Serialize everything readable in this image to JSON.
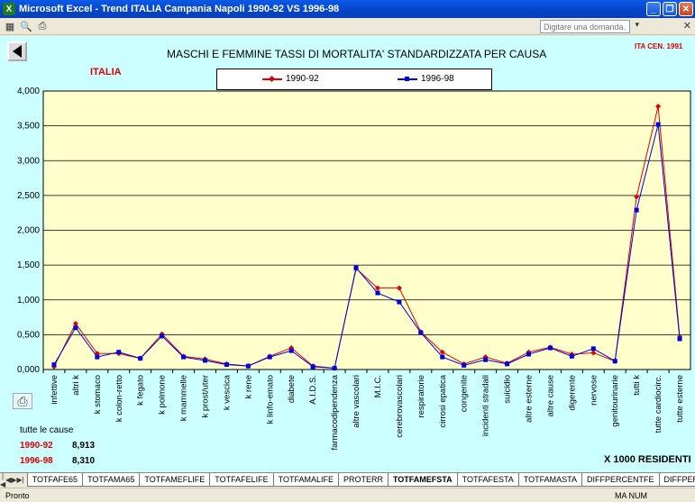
{
  "window": {
    "title": "Microsoft Excel - Trend ITALIA Campania Napoli 1990-92 VS 1996-98",
    "help_placeholder": "Digitare una domanda."
  },
  "chart_title": "MASCHI E FEMMINE TASSI DI MORTALITA' STANDARDIZZATA PER CAUSA",
  "region_label": "ITALIA",
  "census_label": "ITA CEN. 1991",
  "units_label": "X 1000 RESIDENTI",
  "summary": {
    "label": "tutte le cause",
    "rows": [
      {
        "year": "1990-92",
        "value": "8,913"
      },
      {
        "year": "1996-98",
        "value": "8,310"
      }
    ]
  },
  "colors": {
    "series1": "#e00000",
    "series2": "#0000dd",
    "plot_bg": "#ffffcc",
    "page_bg": "#ccffff"
  },
  "chart_data": {
    "type": "line",
    "categories": [
      "infettive",
      "altri k",
      "k stomaco",
      "k colon-retto",
      "k fegato",
      "k polmone",
      "k mammelle",
      "k prost/uter",
      "k vescica",
      "k rene",
      "k linfo-emato",
      "diabete",
      "A.I.D.S.",
      "farmacodipendenza",
      "altre vascolari",
      "M.I.C.",
      "cerebrovascolari",
      "respiratorie",
      "cirrosi epatica",
      "congenite",
      "incidenti stradali",
      "suicidio",
      "altre esterne",
      "altre cause",
      "digerente",
      "nervose",
      "genitourinarie",
      "tutti k",
      "tutte cardiocirc.",
      "tutte esterne"
    ],
    "series": [
      {
        "name": "1990-92",
        "values": [
          0.04,
          0.66,
          0.23,
          0.23,
          0.16,
          0.51,
          0.19,
          0.15,
          0.08,
          0.05,
          0.19,
          0.31,
          0.05,
          0.02,
          1.45,
          1.17,
          1.17,
          0.54,
          0.25,
          0.08,
          0.18,
          0.09,
          0.25,
          0.32,
          0.22,
          0.24,
          0.12,
          2.48,
          3.78,
          0.47
        ]
      },
      {
        "name": "1996-98",
        "values": [
          0.07,
          0.6,
          0.18,
          0.25,
          0.16,
          0.48,
          0.18,
          0.13,
          0.07,
          0.05,
          0.18,
          0.27,
          0.04,
          0.02,
          1.46,
          1.1,
          0.97,
          0.53,
          0.18,
          0.06,
          0.14,
          0.08,
          0.22,
          0.31,
          0.19,
          0.3,
          0.12,
          2.29,
          3.52,
          0.44
        ]
      }
    ],
    "y_ticks": [
      "0,000",
      "0,500",
      "1,000",
      "1,500",
      "2,000",
      "2,500",
      "3,000",
      "3,500",
      "4,000"
    ],
    "ylim": [
      0,
      4
    ],
    "grid": true,
    "legend_position": "top"
  },
  "sheet_tabs": [
    "TOTFAFE65",
    "TOTFAMA65",
    "TOTFAMEFLIFE",
    "TOTFAFELIFE",
    "TOTFAMALIFE",
    "PROTERR",
    "TOTFAMEFSTA",
    "TOTFAFESTA",
    "TOTFAMASTA",
    "DIFFPERCENTFE",
    "DIFFPER"
  ],
  "active_tab": "TOTFAMEFSTA",
  "status": {
    "text": "Pronto",
    "mode": "MA NUM"
  }
}
